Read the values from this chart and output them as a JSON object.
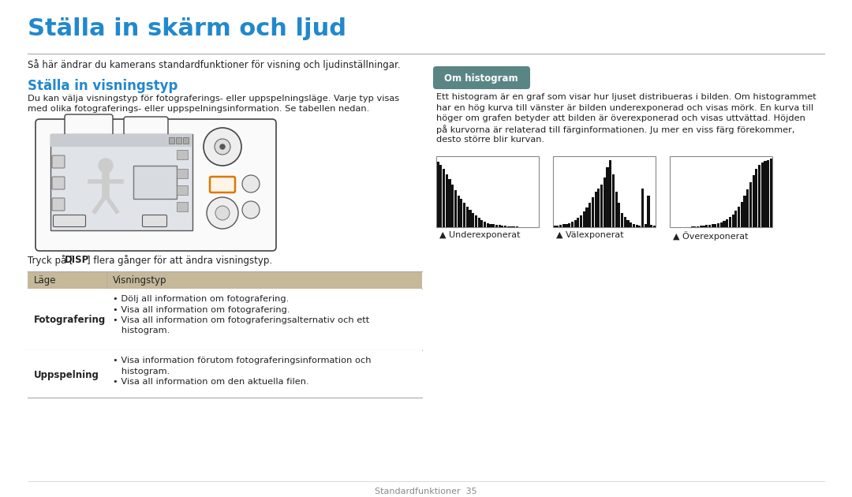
{
  "title": "Ställa in skärm och ljud",
  "subtitle": "Så här ändrar du kamerans standardfunktioner för visning och ljudinställningar.",
  "section1_title": "Ställa in visningstyp",
  "section1_body1": "Du kan välja visningstyp för fotograferings- eller uppspelningsläge. Varje typ visas",
  "section1_body2": "med olika fotograferings- eller uppspelningsinformation. Se tabellen nedan.",
  "disp_text_pre": "Tryck på [",
  "disp_text_bold": "DISP",
  "disp_text_post": "] flera gånger för att ändra visningstyp.",
  "table_header_col1": "Läge",
  "table_header_col2": "Visningstyp",
  "table_row1_col1": "Fotografering",
  "table_row1_col2_lines": [
    "• Dölj all information om fotografering.",
    "• Visa all information om fotografering.",
    "• Visa all information om fotograferingsalternativ och ett",
    "   histogram."
  ],
  "table_row2_col1": "Uppspelning",
  "table_row2_col2_lines": [
    "• Visa information förutom fotograferingsinformation och",
    "   histogram.",
    "• Visa all information om den aktuella filen."
  ],
  "section2_label": "Om histogram",
  "section2_body": [
    "Ett histogram är en graf som visar hur ljuset distribueras i bilden. Om histogrammet",
    "har en hög kurva till vänster är bilden underexponerad och visas mörk. En kurva till",
    "höger om grafen betyder att bilden är överexponerad och visas uttvättad. Höjden",
    "på kurvorna är relaterad till färginformationen. Ju mer en viss färg förekommer,",
    "desto större blir kurvan."
  ],
  "hist_label1": "▲ Underexponerat",
  "hist_label2": "▲ Välexponerat",
  "hist_label3": "▲ Överexponerat",
  "footer": "Standardfunktioner  35",
  "bg_color": "#ffffff",
  "title_color": "#2288cc",
  "section_title_color": "#2288cc",
  "text_color": "#222222",
  "table_header_bg": "#c5b99a",
  "tag_bg": "#5a8585",
  "tag_text_color": "#ffffff",
  "line_color": "#aaaaaa",
  "table_border_color": "#aaaaaa"
}
